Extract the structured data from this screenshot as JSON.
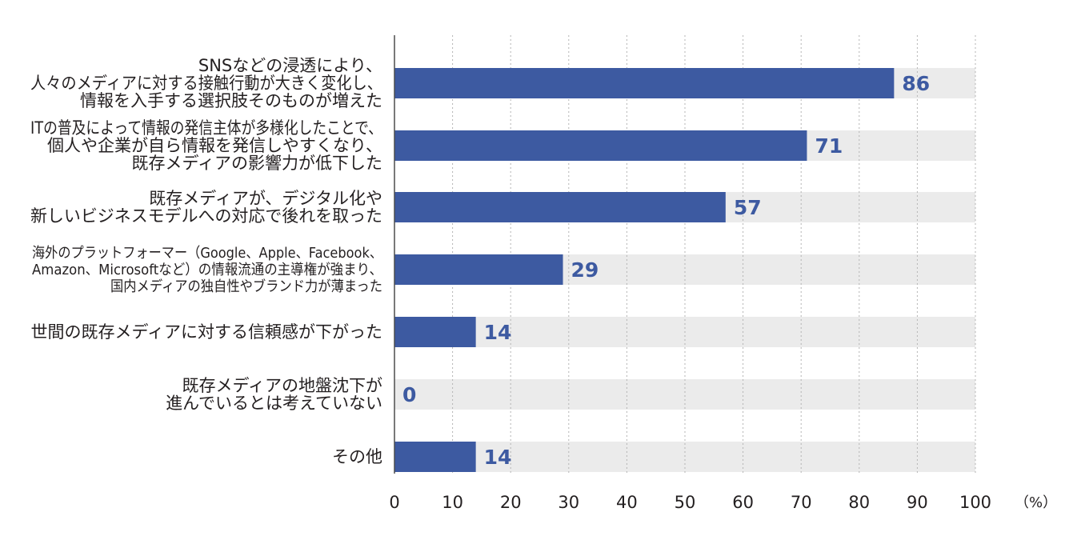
{
  "chart_data": {
    "type": "bar",
    "orientation": "horizontal",
    "categories": [
      [
        "SNSなどの浸透により、",
        "人々のメディアに対する接触行動が大きく変化し、",
        "情報を入手する選択肢そのものが増えた"
      ],
      [
        "ITの普及によって情報の発信主体が多様化したことで、",
        "個人や企業が自ら情報を発信しやすくなり、",
        "既存メディアの影響力が低下した"
      ],
      [
        "既存メディアが、デジタル化や",
        "新しいビジネスモデルへの対応で後れを取った"
      ],
      [
        "海外のプラットフォーマー（Google、Apple、Facebook、",
        "Amazon、Microsoftなど）の情報流通の主導権が強まり、",
        "国内メディアの独自性やブランド力が薄まった"
      ],
      [
        "世間の既存メディアに対する信頼感が下がった"
      ],
      [
        "既存メディアの地盤沈下が",
        "進んでいるとは考えていない"
      ],
      [
        "その他"
      ]
    ],
    "values": [
      86,
      71,
      57,
      29,
      14,
      0,
      14
    ],
    "xlim": [
      0,
      100
    ],
    "xticks": [
      0,
      10,
      20,
      30,
      40,
      50,
      60,
      70,
      80,
      90,
      100
    ],
    "unit": "（%）",
    "grid": true,
    "colors": {
      "bar": "#3d5aa1",
      "track": "#ebebeb",
      "grid": "#b3b3b3",
      "axis": "#4d4d4d",
      "value_text": "#3d5aa1"
    }
  }
}
